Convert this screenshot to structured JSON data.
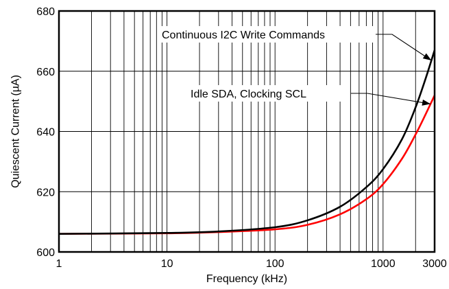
{
  "chart_data": {
    "type": "line",
    "xscale": "log",
    "xlim": [
      1,
      3000
    ],
    "ylim": [
      600,
      680
    ],
    "xlabel": "Frequency (kHz)",
    "ylabel": "Quiescent Current (µA)",
    "grid": true,
    "x_ticks": [
      1,
      10,
      100,
      1000,
      3000
    ],
    "x_tick_labels": [
      "1",
      "10",
      "100",
      "1000",
      "3000"
    ],
    "y_ticks": [
      600,
      620,
      640,
      660,
      680
    ],
    "y_tick_labels": [
      "600",
      "620",
      "640",
      "660",
      "680"
    ],
    "series": [
      {
        "name": "Continuous I2C Write Commands",
        "color": "#000000",
        "x": [
          1,
          10,
          30,
          100,
          200,
          400,
          700,
          1000,
          1500,
          2000,
          2500,
          3000
        ],
        "y": [
          606,
          606.3,
          606.8,
          608.2,
          610.5,
          615,
          621.5,
          627.5,
          637.5,
          648,
          658,
          667
        ]
      },
      {
        "name": "Idle SDA, Clocking SCL",
        "color": "#ff0000",
        "x": [
          1,
          10,
          30,
          100,
          200,
          400,
          700,
          1000,
          1500,
          2000,
          2500,
          3000
        ],
        "y": [
          606,
          606.2,
          606.6,
          607.5,
          609,
          612.5,
          617.5,
          622.5,
          631,
          639,
          646,
          652
        ]
      }
    ],
    "annotations": [
      {
        "text": "Continuous I2C Write Commands",
        "series": 0,
        "points_to_x": 2800
      },
      {
        "text": "Idle SDA, Clocking SCL",
        "series": 1,
        "points_to_x": 2750
      }
    ]
  }
}
